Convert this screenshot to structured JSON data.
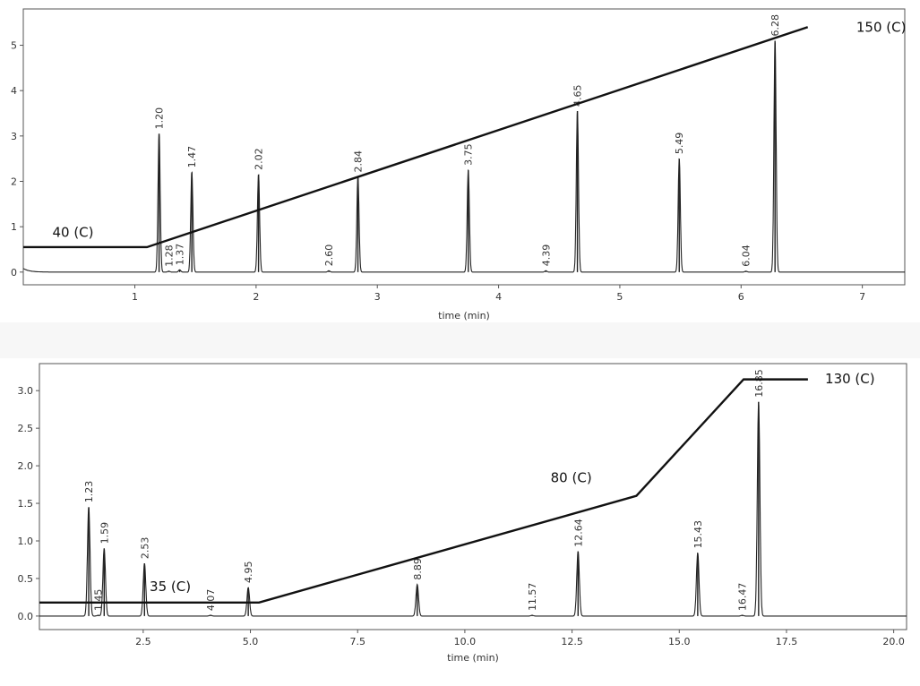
{
  "chart_data": [
    {
      "type": "line",
      "title": "",
      "xlabel": "time (min)",
      "ylabel": "",
      "xlim": [
        0.08,
        7.35
      ],
      "ylim": [
        -0.28,
        5.8
      ],
      "xticks": [
        1,
        2,
        3,
        4,
        5,
        6,
        7
      ],
      "yticks": [
        0,
        1,
        2,
        3,
        4,
        5
      ],
      "ytick_decimals": 0,
      "peak_width": 0.009,
      "peaks": [
        {
          "t": 1.2,
          "h": 3.05,
          "label": "1.20"
        },
        {
          "t": 1.28,
          "h": 0.02,
          "label": "1.28"
        },
        {
          "t": 1.37,
          "h": 0.05,
          "label": "1.37"
        },
        {
          "t": 1.47,
          "h": 2.2,
          "label": "1.47"
        },
        {
          "t": 2.02,
          "h": 2.15,
          "label": "2.02"
        },
        {
          "t": 2.6,
          "h": 0.03,
          "label": "2.60"
        },
        {
          "t": 2.84,
          "h": 2.1,
          "label": "2.84"
        },
        {
          "t": 3.75,
          "h": 2.25,
          "label": "3.75"
        },
        {
          "t": 4.39,
          "h": 0.03,
          "label": "4.39"
        },
        {
          "t": 4.65,
          "h": 3.55,
          "label": "4.65"
        },
        {
          "t": 5.49,
          "h": 2.5,
          "label": "5.49"
        },
        {
          "t": 6.04,
          "h": 0.02,
          "label": "6.04"
        },
        {
          "t": 6.28,
          "h": 5.1,
          "label": "6.28"
        }
      ],
      "temperature_program": {
        "points": [
          [
            0.08,
            0.55
          ],
          [
            1.1,
            0.55
          ],
          [
            6.55,
            5.4
          ]
        ],
        "annotations": [
          {
            "text": "40 (C)",
            "x": 0.32,
            "y": 0.78
          },
          {
            "text": "150 (C)",
            "x": 6.95,
            "y": 5.3
          }
        ]
      }
    },
    {
      "type": "line",
      "title": "",
      "xlabel": "time (min)",
      "ylabel": "",
      "xlim": [
        0.08,
        20.3
      ],
      "ylim": [
        -0.18,
        3.36
      ],
      "xticks": [
        2.5,
        5.0,
        7.5,
        10.0,
        12.5,
        15.0,
        17.5,
        20.0
      ],
      "yticks": [
        0.0,
        0.5,
        1.0,
        1.5,
        2.0,
        2.5,
        3.0
      ],
      "ytick_decimals": 1,
      "peak_width": 0.03,
      "peaks": [
        {
          "t": 1.23,
          "h": 1.45,
          "label": "1.23"
        },
        {
          "t": 1.45,
          "h": 0.01,
          "label": "1.45"
        },
        {
          "t": 1.59,
          "h": 0.9,
          "label": "1.59"
        },
        {
          "t": 2.53,
          "h": 0.7,
          "label": "2.53"
        },
        {
          "t": 4.07,
          "h": 0.01,
          "label": "4.07"
        },
        {
          "t": 4.95,
          "h": 0.38,
          "label": "4.95"
        },
        {
          "t": 8.89,
          "h": 0.42,
          "label": "8.89"
        },
        {
          "t": 11.57,
          "h": 0.01,
          "label": "11.57"
        },
        {
          "t": 12.64,
          "h": 0.86,
          "label": "12.64"
        },
        {
          "t": 15.43,
          "h": 0.84,
          "label": "15.43"
        },
        {
          "t": 16.47,
          "h": 0.01,
          "label": "16.47"
        },
        {
          "t": 16.85,
          "h": 2.85,
          "label": "16.85"
        }
      ],
      "temperature_program": {
        "points": [
          [
            0.08,
            0.18
          ],
          [
            5.2,
            0.18
          ],
          [
            14.0,
            1.6
          ],
          [
            16.5,
            3.15
          ],
          [
            18.0,
            3.15
          ]
        ],
        "annotations": [
          {
            "text": "35 (C)",
            "x": 2.65,
            "y": 0.33
          },
          {
            "text": "80 (C)",
            "x": 12.0,
            "y": 1.78
          },
          {
            "text": "130 (C)",
            "x": 18.4,
            "y": 3.1
          }
        ]
      }
    }
  ]
}
